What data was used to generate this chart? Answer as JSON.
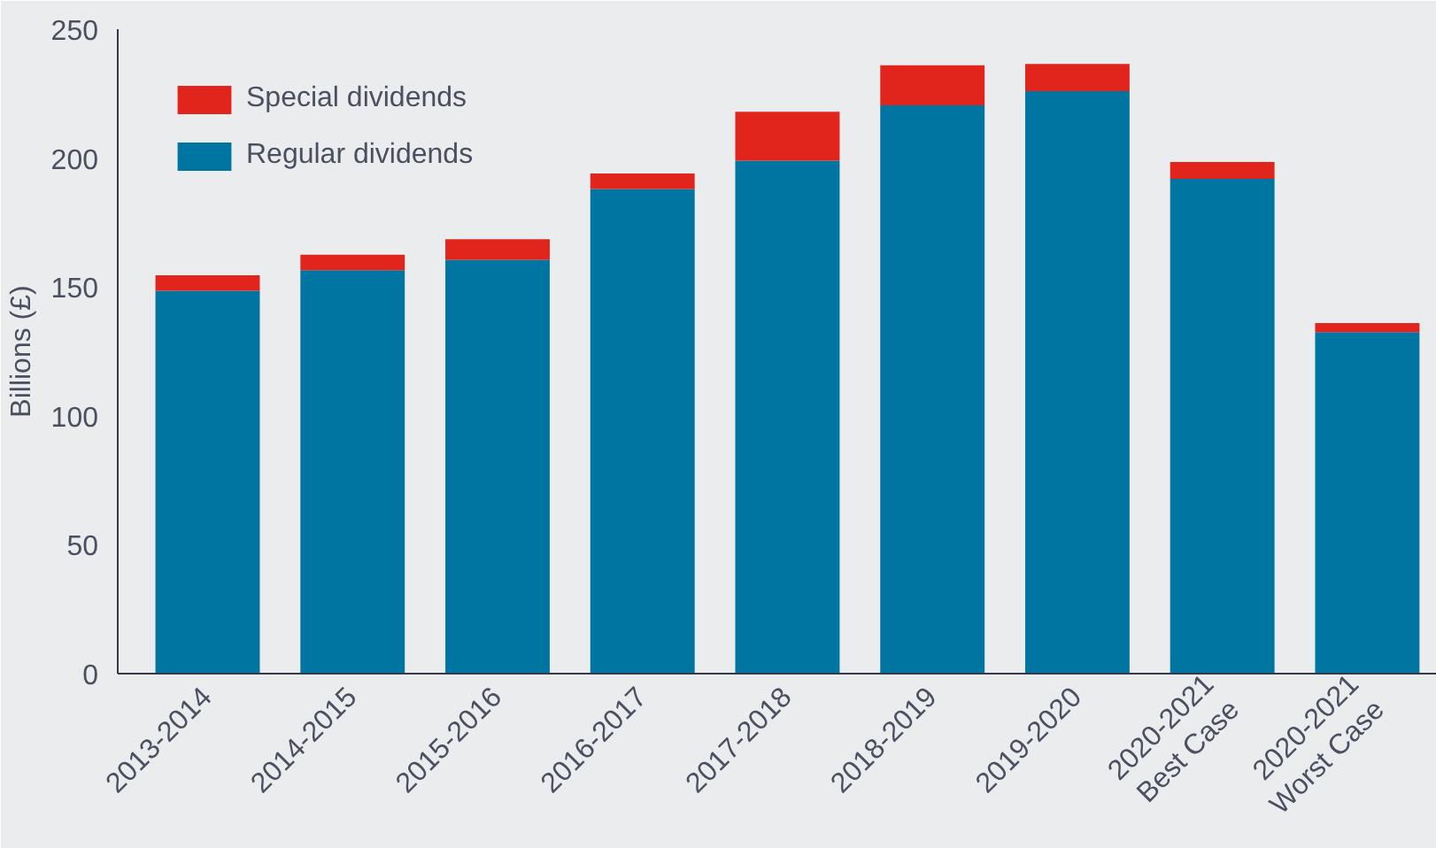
{
  "chart_data": {
    "type": "bar",
    "stacked": true,
    "ylabel": "Billions (£)",
    "categories": [
      "2013-2014",
      "2014-2015",
      "2015-2016",
      "2016-2017",
      "2017-2018",
      "2018-2019",
      "2019-2020",
      "2020-2021\nBest Case",
      "2020-2021\nWorst Case"
    ],
    "series": [
      {
        "name": "Regular dividends",
        "color": "#0075a2",
        "values": [
          148.5,
          156.5,
          160.5,
          188,
          199,
          220.5,
          226,
          192,
          132.5
        ]
      },
      {
        "name": "Special dividends",
        "color": "#e1251d",
        "values": [
          6,
          6,
          8,
          6,
          19,
          15.5,
          10.5,
          6.5,
          3.5
        ]
      }
    ],
    "ylim": [
      0,
      250
    ],
    "yticks": [
      0,
      50,
      100,
      150,
      200,
      250
    ],
    "grid": false,
    "legend": "top left"
  }
}
